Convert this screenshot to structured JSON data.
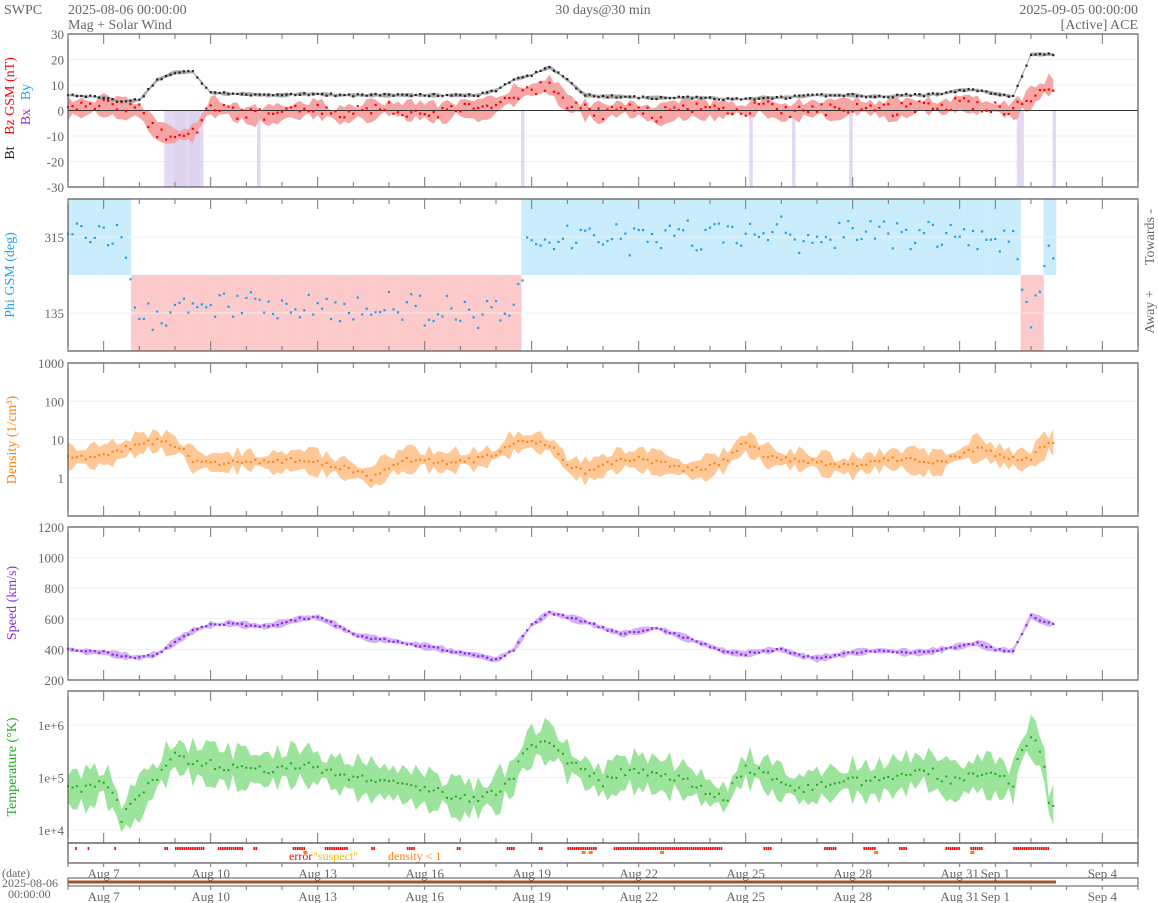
{
  "header": {
    "org": "SWPC",
    "start": "2025-08-06 00:00:00",
    "subtitle": "Mag + Solar Wind",
    "span": "30 days@30 min",
    "end": "2025-09-05 00:00:00",
    "source": "[Active] ACE"
  },
  "colors": {
    "bt": "#222222",
    "bz": "#ff0000",
    "bz_band": "#f6a5a5",
    "bx": "#8a2be2",
    "bx_band": "#ddd0f0",
    "by": "#1ea0f0",
    "phi": "#1ea0f0",
    "toward_fill": "#c8ecfc",
    "away_fill": "#fcc8c8",
    "density": "#ff7f0e",
    "density_band": "#ffc896",
    "speed": "#8a2be2",
    "speed_band": "#d4b0f4",
    "temp": "#22aa22",
    "temp_band": "#9ce49c",
    "timeline": "#a0522d",
    "error": "#ff0000",
    "suspect": "#f0c000",
    "density_lt1": "#ff7f0e"
  },
  "chart_data": {
    "type": "line",
    "x_unit": "days since 2025-08-06 00:00 (12-hour samples)",
    "x_step_days": 0.5,
    "xlim_days": [
      0,
      30
    ],
    "x_ticks": [
      {
        "day": 1,
        "label": "Aug 7"
      },
      {
        "day": 4,
        "label": "Aug 10"
      },
      {
        "day": 7,
        "label": "Aug 13"
      },
      {
        "day": 10,
        "label": "Aug 16"
      },
      {
        "day": 13,
        "label": "Aug 19"
      },
      {
        "day": 16,
        "label": "Aug 22"
      },
      {
        "day": 19,
        "label": "Aug 25"
      },
      {
        "day": 22,
        "label": "Aug 28"
      },
      {
        "day": 25,
        "label": "Aug 31"
      },
      {
        "day": 26,
        "label": "Sep 1"
      },
      {
        "day": 29,
        "label": "Sep 4"
      }
    ],
    "date_axis_label": "(date)",
    "date_axis_start": "2025-08-06",
    "date_axis_time": "00:00:00",
    "panels": [
      {
        "id": "mag",
        "ylabels": [
          "Bt",
          "Bz GSM (nT)",
          "Bx",
          "By"
        ],
        "ylim": [
          -30,
          30
        ],
        "scale": "linear",
        "yticks": [
          "30",
          "20",
          "10",
          "0",
          "-10",
          "-20",
          "-30"
        ],
        "series": [
          {
            "name": "Bt",
            "values": [
              6,
              5.5,
              5,
              3.5,
              4,
              12,
              15,
              15,
              7,
              6.5,
              6.5,
              6,
              6,
              6.5,
              6.5,
              6,
              6,
              6,
              6,
              6,
              6,
              6,
              6,
              6,
              8,
              12,
              14,
              17,
              12,
              6,
              5.5,
              5.5,
              5,
              5,
              5,
              5,
              5,
              4.5,
              4.5,
              5,
              5,
              5.5,
              6,
              6,
              6,
              5.5,
              5.5,
              6,
              6,
              6.5,
              8,
              8,
              6.5,
              5.5,
              22,
              22
            ]
          },
          {
            "name": "Bz GSM",
            "values": [
              1,
              1,
              2,
              1,
              0,
              -8,
              -10,
              -9,
              2,
              0,
              -2,
              -2,
              -1,
              0,
              1,
              -2,
              -1,
              0,
              1,
              0,
              0,
              -1,
              1,
              0,
              2,
              6,
              8,
              10,
              3,
              0,
              -1,
              1,
              0,
              -2,
              0,
              1,
              0,
              1,
              0,
              2,
              -1,
              0,
              1,
              0,
              2,
              1,
              0,
              1,
              2,
              1,
              3,
              2,
              1,
              0,
              5,
              10
            ]
          }
        ]
      },
      {
        "id": "phi",
        "ylabels": [
          "Phi GSM (deg)"
        ],
        "right_labels": [
          "Towards -",
          "Away +"
        ],
        "ylim": [
          45,
          405
        ],
        "scale": "linear",
        "yticks": [
          "315",
          "135"
        ],
        "series": [
          {
            "name": "Phi GSM",
            "values": [
              320,
              315,
              325,
              330,
              130,
              125,
              130,
              145,
              150,
              155,
              150,
              150,
              145,
              140,
              150,
              140,
              145,
              150,
              160,
              150,
              140,
              145,
              135,
              130,
              140,
              150,
              330,
              320,
              310,
              320,
              330,
              310,
              300,
              320,
              330,
              320,
              310,
              315,
              320,
              320,
              330,
              300,
              310,
              315,
              320,
              320,
              325,
              310,
              330,
              315,
              320,
              310,
              320,
              300,
              100,
              280
            ]
          }
        ]
      },
      {
        "id": "density",
        "ylabels": [
          "Density (1/cm³)"
        ],
        "ylim": [
          0.1,
          1000
        ],
        "scale": "log",
        "yticks": [
          "1000",
          "100",
          "10",
          "1"
        ],
        "series": [
          {
            "name": "Density",
            "values": [
              3.5,
              3.5,
              4,
              5,
              8,
              9,
              7,
              3,
              2.5,
              2.5,
              3,
              2.5,
              2.5,
              3,
              2.5,
              2,
              1.5,
              1,
              2,
              3,
              3,
              2.5,
              3,
              3,
              4,
              8,
              9,
              7,
              2,
              1.5,
              2,
              3,
              3,
              2.5,
              2,
              1.5,
              2,
              3,
              8,
              4,
              3,
              3,
              2.5,
              2,
              2,
              2.5,
              3,
              3,
              2.5,
              2.5,
              4,
              6,
              4,
              3,
              3,
              8
            ]
          }
        ]
      },
      {
        "id": "speed",
        "ylabels": [
          "Speed (km/s)"
        ],
        "ylim": [
          200,
          1200
        ],
        "scale": "linear",
        "yticks": [
          "1200",
          "1000",
          "800",
          "600",
          "400",
          "200"
        ],
        "series": [
          {
            "name": "Speed",
            "values": [
              400,
              385,
              380,
              360,
              345,
              370,
              450,
              520,
              560,
              570,
              560,
              550,
              570,
              600,
              610,
              560,
              500,
              470,
              460,
              440,
              420,
              400,
              375,
              360,
              330,
              400,
              560,
              640,
              610,
              580,
              540,
              500,
              520,
              540,
              500,
              460,
              420,
              380,
              370,
              390,
              400,
              360,
              340,
              360,
              380,
              390,
              390,
              380,
              380,
              400,
              420,
              440,
              400,
              390,
              620,
              570
            ]
          }
        ]
      },
      {
        "id": "temperature",
        "ylabels": [
          "Temperature (°K)"
        ],
        "ylim": [
          5600,
          4500000
        ],
        "scale": "log",
        "yticks": [
          "1e+6",
          "1e+5",
          "1e+4"
        ],
        "series": [
          {
            "name": "Temperature",
            "values": [
              60000,
              60000,
              80000,
              15000,
              40000,
              100000,
              250000,
              200000,
              180000,
              160000,
              150000,
              140000,
              160000,
              180000,
              150000,
              120000,
              100000,
              90000,
              80000,
              70000,
              60000,
              50000,
              40000,
              40000,
              50000,
              100000,
              400000,
              500000,
              200000,
              120000,
              80000,
              120000,
              130000,
              110000,
              100000,
              80000,
              50000,
              40000,
              150000,
              120000,
              80000,
              60000,
              70000,
              80000,
              90000,
              80000,
              100000,
              120000,
              150000,
              100000,
              80000,
              120000,
              100000,
              80000,
              600000,
              30000
            ]
          }
        ]
      }
    ],
    "flags": {
      "legend": [
        "error",
        "\"suspect\"",
        "density < 1"
      ],
      "error_ranges_days": [
        [
          0.2,
          0.25
        ],
        [
          0.55,
          0.6
        ],
        [
          1.3,
          1.35
        ],
        [
          2.7,
          2.8
        ],
        [
          3.0,
          3.8
        ],
        [
          4.2,
          4.9
        ],
        [
          5.2,
          5.3
        ],
        [
          6.3,
          6.6
        ],
        [
          7.2,
          7.8
        ],
        [
          8.5,
          8.6
        ],
        [
          9.5,
          9.7
        ],
        [
          10.9,
          11.0
        ],
        [
          12.3,
          12.5
        ],
        [
          13.2,
          13.3
        ],
        [
          14.0,
          14.8
        ],
        [
          15.3,
          18.3
        ],
        [
          19.5,
          19.7
        ],
        [
          21.2,
          21.5
        ],
        [
          22.3,
          22.6
        ],
        [
          23.3,
          23.5
        ],
        [
          24.6,
          25.0
        ],
        [
          25.3,
          25.6
        ],
        [
          26.5,
          27.5
        ]
      ],
      "suspect_days": [
        6.6,
        14.4,
        14.6,
        16.6,
        22.6,
        25.3
      ]
    },
    "data_coverage_days": [
      0,
      27.7
    ]
  }
}
